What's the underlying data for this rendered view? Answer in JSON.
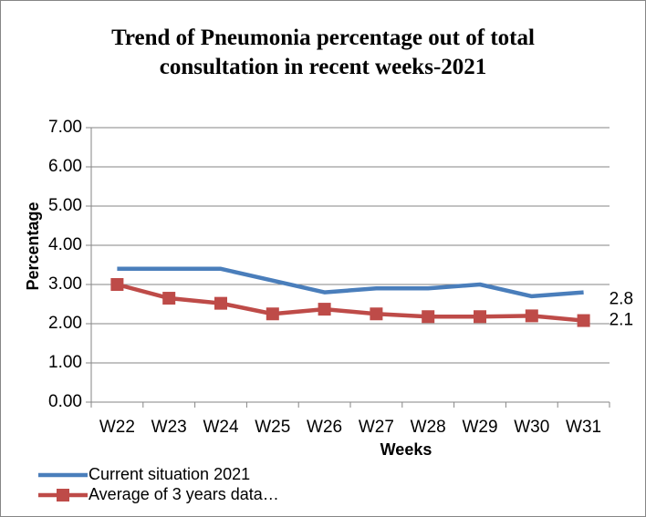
{
  "chart_data": {
    "type": "line",
    "title": "Trend of Pneumonia percentage out of total consultation in recent weeks-2021",
    "x_label": "Weeks",
    "y_label": "Percentage",
    "categories": [
      "W22",
      "W23",
      "W24",
      "W25",
      "W26",
      "W27",
      "W28",
      "W29",
      "W30",
      "W31"
    ],
    "series": [
      {
        "name": "Current situation 2021",
        "color": "#4a7ebb",
        "marker": "none",
        "values": [
          3.4,
          3.4,
          3.4,
          3.1,
          2.8,
          2.9,
          2.9,
          3.0,
          2.7,
          2.8
        ],
        "value_labels": [
          null,
          null,
          null,
          null,
          null,
          null,
          null,
          null,
          null,
          "2.8"
        ]
      },
      {
        "name": "Average of 3 years data…",
        "color": "#be4b48",
        "marker": "square",
        "values": [
          3.0,
          2.65,
          2.52,
          2.25,
          2.37,
          2.25,
          2.18,
          2.18,
          2.2,
          2.08
        ],
        "value_labels": [
          null,
          null,
          null,
          null,
          null,
          null,
          null,
          null,
          null,
          "2.1"
        ]
      }
    ],
    "ylim": [
      0,
      7
    ],
    "yticks": [
      {
        "value": 0,
        "label": "0.00"
      },
      {
        "value": 1,
        "label": "1.00"
      },
      {
        "value": 2,
        "label": "2.00"
      },
      {
        "value": 3,
        "label": "3.00"
      },
      {
        "value": 4,
        "label": "4.00"
      },
      {
        "value": 5,
        "label": "5.00"
      },
      {
        "value": 6,
        "label": "6.00"
      },
      {
        "value": 7,
        "label": "7.00"
      }
    ],
    "grid": true,
    "legend": "bottom-left"
  }
}
